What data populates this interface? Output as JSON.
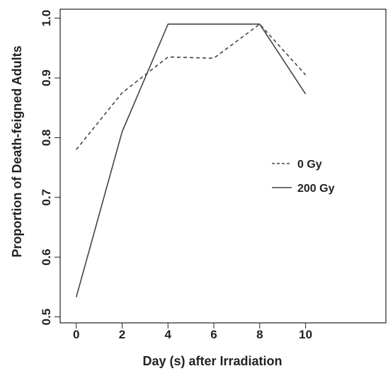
{
  "chart_data": {
    "type": "line",
    "xlabel": "Day (s) after Irradiation",
    "ylabel": "Proportion of Death-feigned Adults",
    "x": [
      0,
      2,
      4,
      6,
      8,
      10
    ],
    "xticks": [
      "0",
      "2",
      "4",
      "6",
      "8",
      "10"
    ],
    "yticks": [
      "0.5",
      "0.6",
      "0.7",
      "0.8",
      "0.9",
      "1.0"
    ],
    "xlim": [
      -0.7,
      13.5
    ],
    "ylim": [
      0.49,
      1.015
    ],
    "series": [
      {
        "name": "0 Gy",
        "style": "dashed",
        "color": "#444444",
        "values": [
          0.78,
          0.875,
          0.935,
          0.933,
          0.99,
          0.905
        ]
      },
      {
        "name": "200 Gy",
        "style": "solid",
        "color": "#444444",
        "values": [
          0.533,
          0.81,
          0.99,
          0.99,
          0.99,
          0.873
        ]
      }
    ],
    "legend_position": "right-middle",
    "grid": false
  }
}
